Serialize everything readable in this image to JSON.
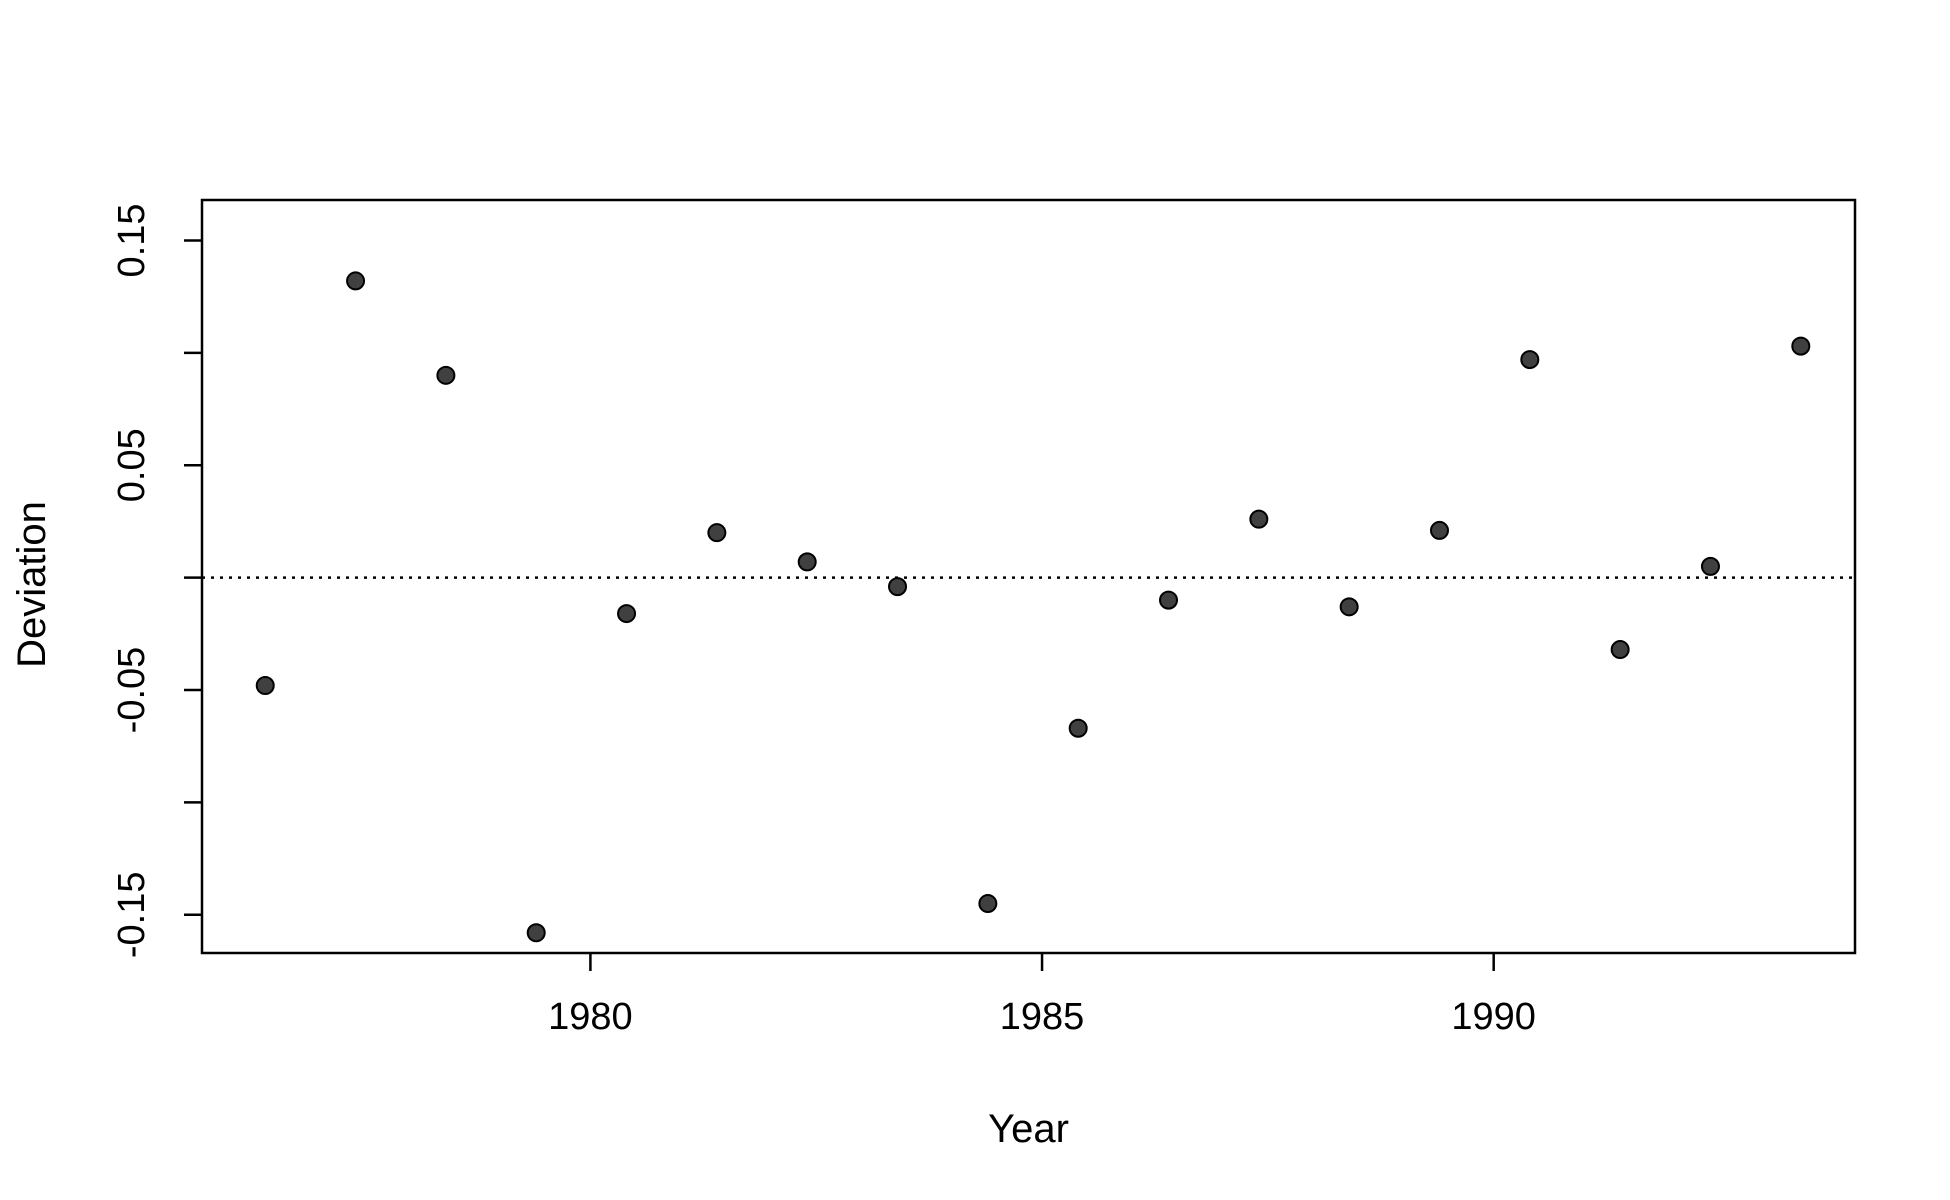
{
  "chart_data": {
    "type": "scatter",
    "title": "",
    "xlabel": "Year",
    "ylabel": "Deviation",
    "xlim": [
      1975.7,
      1994.0
    ],
    "ylim": [
      -0.167,
      0.168
    ],
    "x_ticks": [
      1980,
      1985,
      1990
    ],
    "x_tick_labels": [
      "1980",
      "1985",
      "1990"
    ],
    "y_ticks": [
      -0.15,
      -0.1,
      -0.05,
      0.0,
      0.05,
      0.1,
      0.15
    ],
    "y_tick_labels": [
      "-0.15",
      "",
      "-0.05",
      "",
      "0.05",
      "",
      "0.15"
    ],
    "reference_line": {
      "y": 0,
      "style": "dotted"
    },
    "grid": false,
    "point_color": "#404040",
    "series": [
      {
        "x": [
          1976.4,
          1977.4,
          1978.4,
          1979.4,
          1980.4,
          1981.4,
          1982.4,
          1983.4,
          1984.4,
          1985.4,
          1986.4,
          1987.4,
          1988.4,
          1989.4,
          1990.4,
          1991.4,
          1992.4,
          1993.4
        ],
        "y": [
          -0.048,
          0.132,
          0.09,
          -0.158,
          -0.016,
          0.02,
          0.007,
          -0.004,
          -0.145,
          -0.067,
          -0.01,
          0.026,
          -0.013,
          0.021,
          0.097,
          -0.032,
          0.005,
          0.103
        ]
      }
    ]
  }
}
